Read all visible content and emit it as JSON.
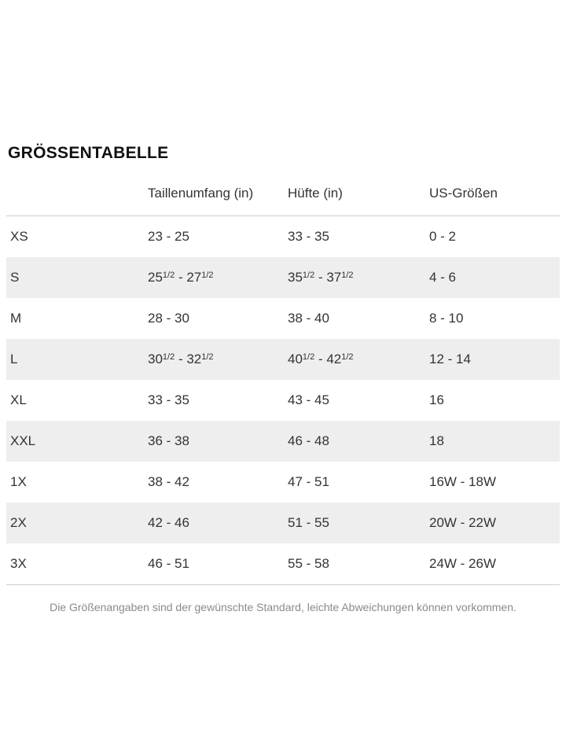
{
  "page": {
    "title": "GRÖSSENTABELLE",
    "footer_note": "Die Größenangaben sind der gewünschte Standard, leichte Abweichungen können vorkommen."
  },
  "table": {
    "headers": [
      "",
      "Taillenumfang (in)",
      "Hüfte (in)",
      "US-Größen"
    ],
    "row_keys": [
      "size",
      "waist",
      "hip",
      "us"
    ],
    "rows": [
      {
        "size": "XS",
        "waist": "23 - 25",
        "hip": "33 - 35",
        "us": "0 - 2"
      },
      {
        "size": "S",
        "waist": "25^1/2^ - 27^1/2^",
        "hip": "35^1/2^ - 37^1/2^",
        "us": "4 - 6"
      },
      {
        "size": "M",
        "waist": "28 - 30",
        "hip": "38 - 40",
        "us": "8 - 10"
      },
      {
        "size": "L",
        "waist": "30^1/2^ - 32^1/2^",
        "hip": "40^1/2^ - 42^1/2^",
        "us": "12 - 14"
      },
      {
        "size": "XL",
        "waist": "33 - 35",
        "hip": "43 - 45",
        "us": "16"
      },
      {
        "size": "XXL",
        "waist": "36 - 38",
        "hip": "46 - 48",
        "us": "18"
      },
      {
        "size": "1X",
        "waist": "38 - 42",
        "hip": "47 - 51",
        "us": "16W - 18W"
      },
      {
        "size": "2X",
        "waist": "42 - 46",
        "hip": "51 - 55",
        "us": "20W - 22W"
      },
      {
        "size": "3X",
        "waist": "46 - 51",
        "hip": "55 - 58",
        "us": "24W - 26W"
      }
    ],
    "colors": {
      "stripe": "#eeeeee",
      "divider": "#cccccc",
      "body_text": "#333333",
      "title_text": "#111111",
      "footer_text": "#8a8a8a"
    }
  }
}
